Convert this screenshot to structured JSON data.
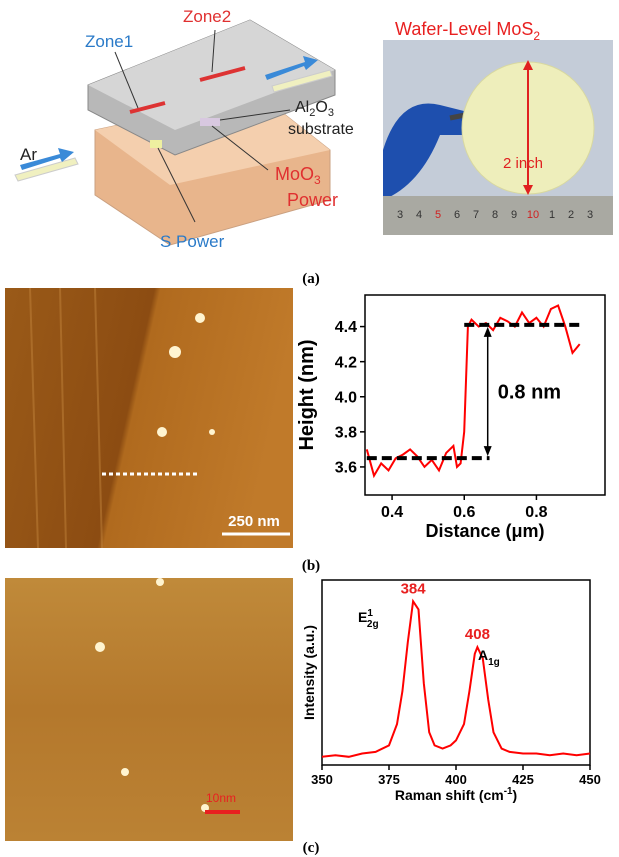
{
  "figure": {
    "panel_labels": [
      "(a)",
      "(b)",
      "(c)"
    ]
  },
  "diagram": {
    "zone1": "Zone1",
    "zone2": "Zone2",
    "ar": "Ar",
    "al2o3": [
      "Al",
      "2",
      "O",
      "3"
    ],
    "substrate": "substrate",
    "moo3": [
      "MoO",
      "3"
    ],
    "power": "Power",
    "s_power": "S Power"
  },
  "photo": {
    "title": [
      "Wafer-Level MoS",
      "2"
    ],
    "size": "2 inch",
    "ruler": [
      "3",
      "4",
      "5",
      "6",
      "7",
      "8",
      "9",
      "10",
      "1",
      "2",
      "3"
    ]
  },
  "afm": {
    "scale_b": "250 nm",
    "scale_c": "10nm"
  },
  "chart_data": [
    {
      "type": "line",
      "x_label": "Distance (μm)",
      "y_label": "Height (nm)",
      "x": [
        0.33,
        0.35,
        0.37,
        0.39,
        0.41,
        0.43,
        0.45,
        0.47,
        0.49,
        0.51,
        0.53,
        0.55,
        0.57,
        0.58,
        0.59,
        0.6,
        0.61,
        0.62,
        0.64,
        0.66,
        0.68,
        0.7,
        0.72,
        0.74,
        0.76,
        0.78,
        0.8,
        0.82,
        0.84,
        0.86,
        0.88,
        0.9,
        0.92
      ],
      "values": [
        3.7,
        3.55,
        3.62,
        3.58,
        3.65,
        3.67,
        3.7,
        3.66,
        3.6,
        3.64,
        3.58,
        3.68,
        3.72,
        3.6,
        3.62,
        3.8,
        4.4,
        4.44,
        4.4,
        4.42,
        4.38,
        4.45,
        4.43,
        4.4,
        4.48,
        4.42,
        4.45,
        4.4,
        4.5,
        4.52,
        4.4,
        4.25,
        4.3
      ],
      "color": "#ff0000",
      "xlim": [
        0.325,
        0.99
      ],
      "ylim": [
        3.44,
        4.58
      ],
      "xticks": [
        0.4,
        0.6,
        0.8
      ],
      "yticks": [
        3.6,
        3.8,
        {
          "value": 4,
          "label": "4.0"
        },
        4.2,
        4.4
      ],
      "reference_lines": [
        3.65,
        4.41
      ],
      "annotation": "0.8 nm"
    },
    {
      "type": "line",
      "x_label": [
        "Raman shift (cm",
        "-1",
        ")"
      ],
      "y_label": "Intensity (a.u.)",
      "x": [
        350,
        355,
        360,
        365,
        370,
        375,
        378,
        380,
        382,
        384,
        386,
        388,
        390,
        392,
        395,
        398,
        400,
        403,
        405,
        407,
        408,
        410,
        412,
        414,
        417,
        420,
        425,
        430,
        435,
        440,
        445,
        450
      ],
      "values": [
        0.05,
        0.06,
        0.05,
        0.07,
        0.08,
        0.12,
        0.25,
        0.45,
        0.75,
        1.0,
        0.95,
        0.5,
        0.2,
        0.12,
        0.1,
        0.12,
        0.15,
        0.25,
        0.45,
        0.68,
        0.72,
        0.65,
        0.4,
        0.2,
        0.1,
        0.08,
        0.07,
        0.07,
        0.06,
        0.07,
        0.06,
        0.07
      ],
      "color": "#ff0000",
      "xlim": [
        350,
        450
      ],
      "ylim": [
        0,
        1.13
      ],
      "xticks": [
        350,
        375,
        400,
        425,
        450
      ],
      "peak_labels": [
        384,
        408
      ],
      "peak_names": [
        [
          "E",
          "1",
          "2g"
        ],
        [
          "A",
          "1g"
        ]
      ]
    }
  ]
}
